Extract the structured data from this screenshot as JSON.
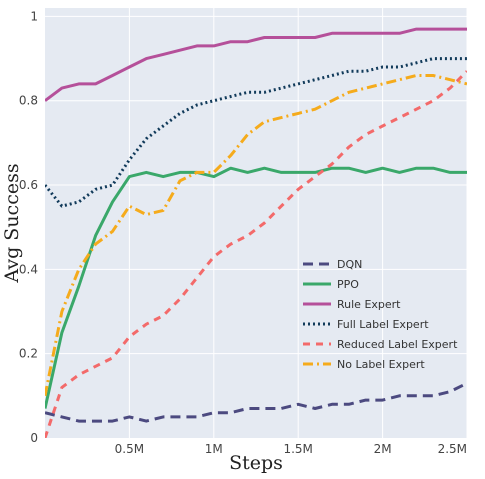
{
  "chart_data": {
    "type": "line",
    "xlabel": "Steps",
    "ylabel": "Avg Success",
    "xlim": [
      0,
      2500000
    ],
    "ylim": [
      0,
      1.02
    ],
    "grid": true,
    "legend_position": "bottom-right",
    "x_ticks": [
      {
        "value": 500000,
        "label": "0.5M"
      },
      {
        "value": 1000000,
        "label": "1M"
      },
      {
        "value": 1500000,
        "label": "1.5M"
      },
      {
        "value": 2000000,
        "label": "2M"
      },
      {
        "value": 2500000,
        "label": "2.5M"
      }
    ],
    "y_ticks": [
      {
        "value": 0,
        "label": "0"
      },
      {
        "value": 0.2,
        "label": "0.2"
      },
      {
        "value": 0.4,
        "label": "0.4"
      },
      {
        "value": 0.6,
        "label": "0.6"
      },
      {
        "value": 0.8,
        "label": "0.8"
      },
      {
        "value": 1,
        "label": "1"
      }
    ],
    "x": [
      0,
      100000,
      200000,
      300000,
      400000,
      500000,
      600000,
      700000,
      800000,
      900000,
      1000000,
      1100000,
      1200000,
      1300000,
      1400000,
      1500000,
      1600000,
      1700000,
      1800000,
      1900000,
      2000000,
      2100000,
      2200000,
      2300000,
      2400000,
      2500000
    ],
    "series": [
      {
        "name": "DQN",
        "color": "#4c4a80",
        "dash": "10,6",
        "width": 3,
        "values": [
          0.06,
          0.05,
          0.04,
          0.04,
          0.04,
          0.05,
          0.04,
          0.05,
          0.05,
          0.05,
          0.06,
          0.06,
          0.07,
          0.07,
          0.07,
          0.08,
          0.07,
          0.08,
          0.08,
          0.09,
          0.09,
          0.1,
          0.1,
          0.1,
          0.11,
          0.13
        ]
      },
      {
        "name": "PPO",
        "color": "#3aa86a",
        "dash": "",
        "width": 3,
        "values": [
          0.07,
          0.25,
          0.36,
          0.48,
          0.56,
          0.62,
          0.63,
          0.62,
          0.63,
          0.63,
          0.62,
          0.64,
          0.63,
          0.64,
          0.63,
          0.63,
          0.63,
          0.64,
          0.64,
          0.63,
          0.64,
          0.63,
          0.64,
          0.64,
          0.63,
          0.63
        ]
      },
      {
        "name": "Rule Expert",
        "color": "#b5509a",
        "dash": "",
        "width": 3,
        "values": [
          0.8,
          0.83,
          0.84,
          0.84,
          0.86,
          0.88,
          0.9,
          0.91,
          0.92,
          0.93,
          0.93,
          0.94,
          0.94,
          0.95,
          0.95,
          0.95,
          0.95,
          0.96,
          0.96,
          0.96,
          0.96,
          0.96,
          0.97,
          0.97,
          0.97,
          0.97
        ]
      },
      {
        "name": "Full Label Expert",
        "color": "#113a5a",
        "dash": "2,3",
        "width": 3,
        "values": [
          0.6,
          0.55,
          0.56,
          0.59,
          0.6,
          0.66,
          0.71,
          0.74,
          0.77,
          0.79,
          0.8,
          0.81,
          0.82,
          0.82,
          0.83,
          0.84,
          0.85,
          0.86,
          0.87,
          0.87,
          0.88,
          0.88,
          0.89,
          0.9,
          0.9,
          0.9
        ]
      },
      {
        "name": "Reduced Label Expert",
        "color": "#f36a6a",
        "dash": "7,6",
        "width": 3,
        "values": [
          0.0,
          0.12,
          0.15,
          0.17,
          0.19,
          0.24,
          0.27,
          0.29,
          0.33,
          0.38,
          0.43,
          0.46,
          0.48,
          0.51,
          0.55,
          0.59,
          0.62,
          0.65,
          0.69,
          0.72,
          0.74,
          0.76,
          0.78,
          0.8,
          0.83,
          0.87
        ]
      },
      {
        "name": "No Label Expert",
        "color": "#f5ab1c",
        "dash": "10,4,2,4",
        "width": 3,
        "values": [
          0.1,
          0.3,
          0.4,
          0.46,
          0.49,
          0.55,
          0.53,
          0.54,
          0.61,
          0.63,
          0.63,
          0.67,
          0.72,
          0.75,
          0.76,
          0.77,
          0.78,
          0.8,
          0.82,
          0.83,
          0.84,
          0.85,
          0.86,
          0.86,
          0.85,
          0.84
        ]
      }
    ]
  }
}
